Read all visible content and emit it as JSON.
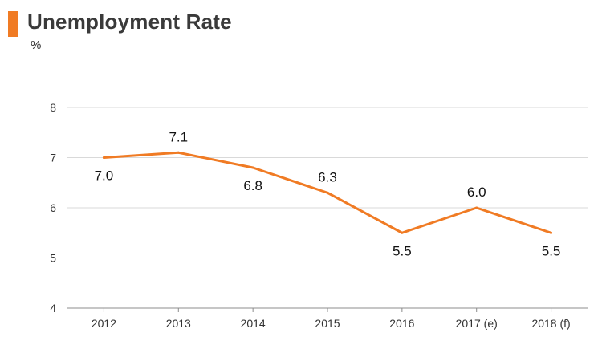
{
  "header": {
    "title": "Unemployment Rate",
    "unit": "%"
  },
  "colors": {
    "accent": "#f07b24",
    "line": "#f07b24",
    "grid": "#d9d9d9",
    "axis": "#8c8c8c"
  },
  "chart_data": {
    "type": "line",
    "title": "Unemployment Rate",
    "xlabel": "",
    "ylabel": "%",
    "categories": [
      "2012",
      "2013",
      "2014",
      "2015",
      "2016",
      "2017 (e)",
      "2018 (f)"
    ],
    "series": [
      {
        "values": [
          7.0,
          7.1,
          6.8,
          6.3,
          5.5,
          6.0,
          5.5
        ],
        "labels": [
          "7.0",
          "7.1",
          "6.8",
          "6.3",
          "5.5",
          "6.0",
          "5.5"
        ],
        "label_positions": [
          "below",
          "above",
          "below",
          "above",
          "below",
          "above",
          "below"
        ]
      }
    ],
    "ylim": [
      4,
      8
    ],
    "yticks": [
      4,
      5,
      6,
      7,
      8
    ],
    "grid": true,
    "legend": "none"
  }
}
